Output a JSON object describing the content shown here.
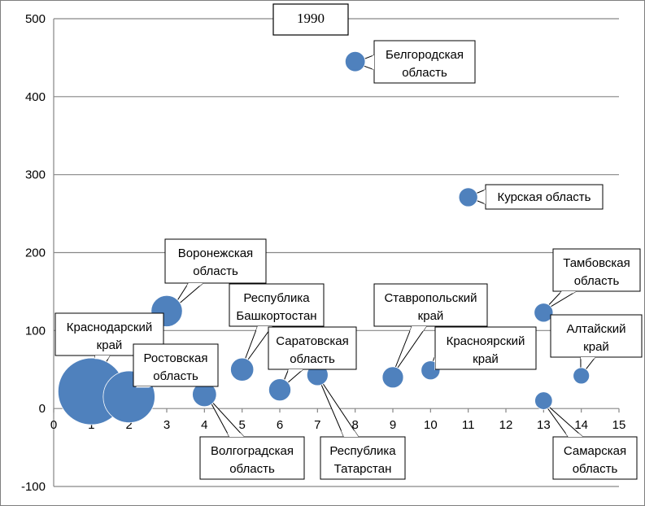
{
  "chart_data": {
    "type": "bubble",
    "title": "1990",
    "xlabel": "",
    "ylabel": "",
    "xlim": [
      0,
      15
    ],
    "ylim": [
      -100,
      500
    ],
    "x_ticks": [
      "0",
      "1",
      "2",
      "3",
      "4",
      "5",
      "6",
      "7",
      "8",
      "9",
      "10",
      "11",
      "12",
      "13",
      "14",
      "15"
    ],
    "y_ticks": [
      "-100",
      "0",
      "100",
      "200",
      "300",
      "400",
      "500"
    ],
    "grid": "horizontal",
    "bubble_color": "#4f81bd",
    "series": [
      {
        "label": "Краснодарский край",
        "x": 1,
        "y": 22,
        "size": 100
      },
      {
        "label": "Ростовская область",
        "x": 2,
        "y": 15,
        "size": 60
      },
      {
        "label": "Воронежская область",
        "x": 3,
        "y": 125,
        "size": 22
      },
      {
        "label": "Волгоградская область",
        "x": 4,
        "y": 18,
        "size": 13
      },
      {
        "label": "Республика Башкортостан",
        "x": 5,
        "y": 50,
        "size": 12
      },
      {
        "label": "Саратовская область",
        "x": 6,
        "y": 24,
        "size": 11
      },
      {
        "label": "Республика Татарстан",
        "x": 7,
        "y": 43,
        "size": 10
      },
      {
        "label": "Белгородская область",
        "x": 8,
        "y": 445,
        "size": 9
      },
      {
        "label": "Ставропольский край",
        "x": 9,
        "y": 40,
        "size": 10
      },
      {
        "label": "Красноярский край",
        "x": 10,
        "y": 49,
        "size": 8
      },
      {
        "label": "Курская область",
        "x": 11,
        "y": 271,
        "size": 8
      },
      {
        "label": "Тамбовская область",
        "x": 13,
        "y": 123,
        "size": 8
      },
      {
        "label": "Самарская область",
        "x": 13,
        "y": 10,
        "size": 7
      },
      {
        "label": "Алтайский край",
        "x": 14,
        "y": 42,
        "size": 6
      }
    ]
  }
}
